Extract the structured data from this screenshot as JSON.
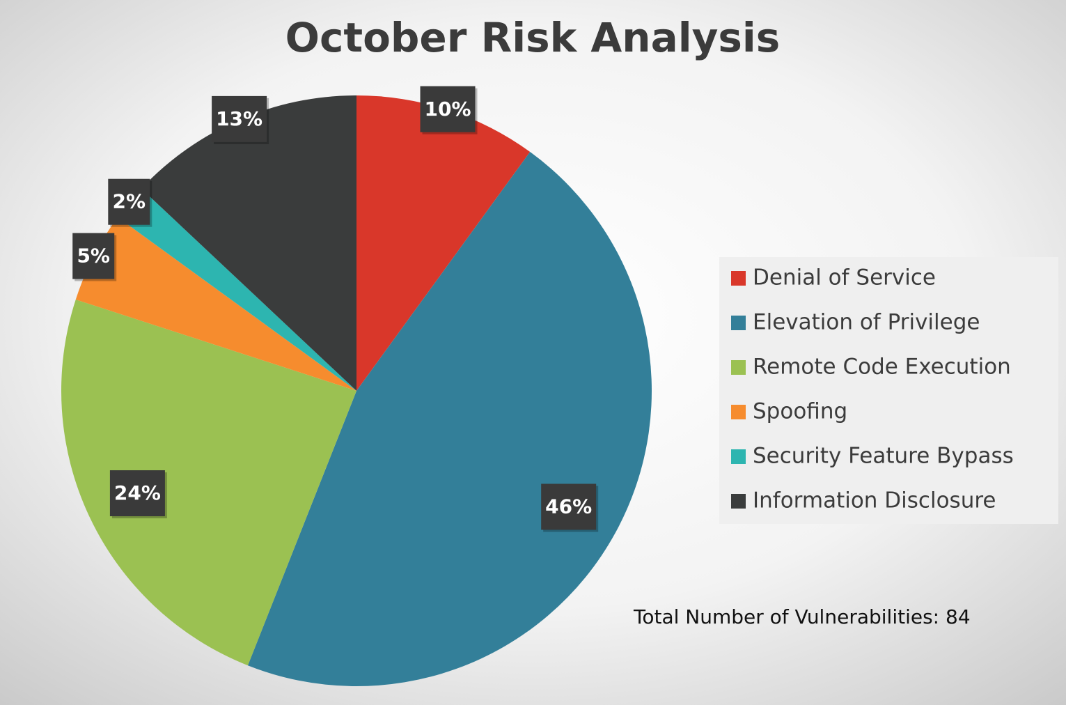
{
  "chart_data": {
    "type": "pie",
    "title": "October Risk Analysis",
    "categories": [
      "Denial of Service",
      "Elevation of Privilege",
      "Remote Code Execution",
      "Spoofing",
      "Security Feature Bypass",
      "Information Disclosure"
    ],
    "values": [
      10,
      46,
      24,
      5,
      2,
      13
    ],
    "value_labels": [
      "10%",
      "46%",
      "24%",
      "5%",
      "2%",
      "13%"
    ],
    "colors": [
      "#d9372a",
      "#337f99",
      "#9bc152",
      "#f68c2e",
      "#2db5b0",
      "#3a3c3c"
    ],
    "legend": "right",
    "annotation": "Total Number of Vulnerabilities: 84"
  }
}
